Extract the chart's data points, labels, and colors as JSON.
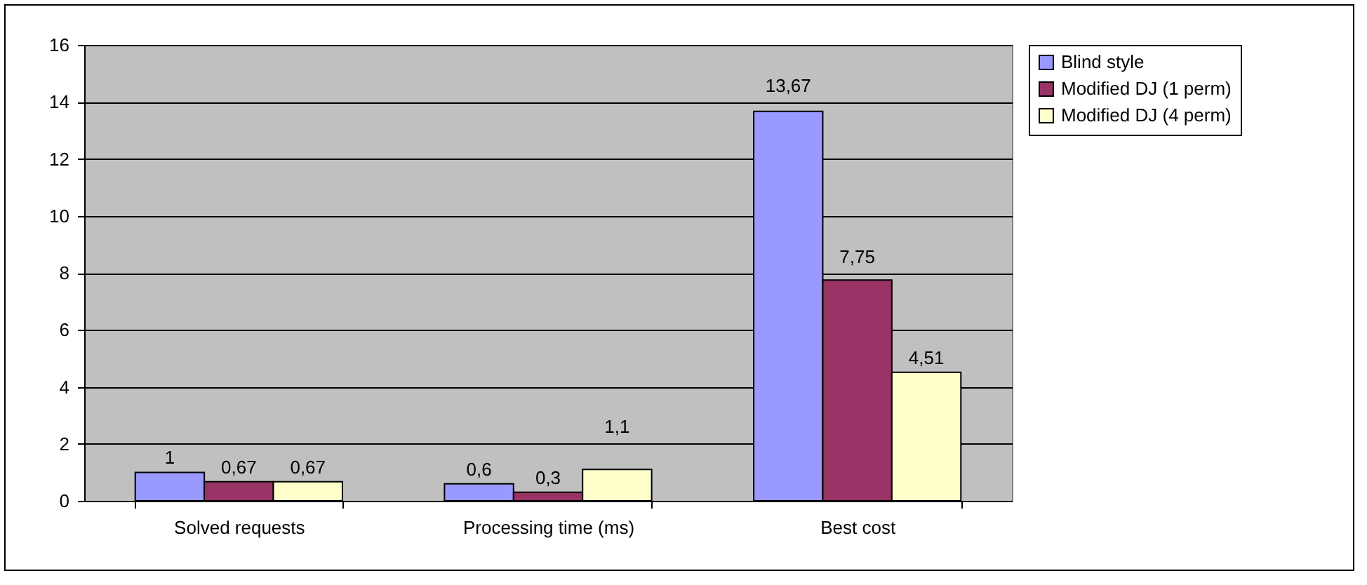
{
  "chart_data": {
    "type": "bar",
    "categories": [
      "Solved requests",
      "Processing time (ms)",
      "Best cost"
    ],
    "series": [
      {
        "name": "Blind style",
        "color": "#9999ff",
        "values": [
          1,
          0.6,
          13.67
        ],
        "value_labels": [
          "1",
          "0,6",
          "13,67"
        ]
      },
      {
        "name": "Modified DJ (1 perm)",
        "color": "#993366",
        "values": [
          0.67,
          0.3,
          7.75
        ],
        "value_labels": [
          "0,67",
          "0,3",
          "7,75"
        ]
      },
      {
        "name": "Modified DJ (4 perm)",
        "color": "#ffffcc",
        "values": [
          0.67,
          1.1,
          4.51
        ],
        "value_labels": [
          "0,67",
          "1,1",
          "4,51"
        ]
      }
    ],
    "ylim": [
      0,
      16
    ],
    "yticks": [
      0,
      2,
      4,
      6,
      8,
      10,
      12,
      14,
      16
    ],
    "grid": "y",
    "legend": "right"
  }
}
